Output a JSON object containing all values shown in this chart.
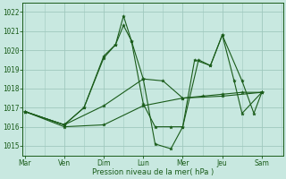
{
  "bg_color": "#c8e8e0",
  "grid_color": "#a0c8be",
  "line_color": "#1a5c1a",
  "xlabel": "Pression niveau de la mer( hPa )",
  "day_labels": [
    "Mar",
    "Ven",
    "Dim",
    "Lun",
    "Mer",
    "Jeu",
    "Sam"
  ],
  "yticks": [
    1015,
    1016,
    1017,
    1018,
    1019,
    1020,
    1021,
    1022
  ],
  "ylim": [
    1014.5,
    1022.5
  ],
  "xlim": [
    -0.05,
    6.55
  ],
  "s1_x": [
    0,
    1.0,
    2.0,
    3.0,
    4.0,
    5.0,
    6.0
  ],
  "s1_y": [
    1016.8,
    1016.0,
    1016.1,
    1017.1,
    1017.5,
    1017.6,
    1017.8
  ],
  "s2_x": [
    0,
    1.0,
    2.0,
    3.0,
    3.5,
    4.0,
    4.5,
    5.0,
    5.5,
    6.0
  ],
  "s2_y": [
    1016.8,
    1016.1,
    1017.1,
    1018.5,
    1018.4,
    1017.5,
    1017.6,
    1017.7,
    1017.8,
    1017.8
  ],
  "s3_x": [
    0,
    1.0,
    1.5,
    2.0,
    2.3,
    2.5,
    2.7,
    3.0,
    3.3,
    3.7,
    4.0,
    4.3,
    4.7,
    5.0,
    5.3,
    5.5,
    6.0
  ],
  "s3_y": [
    1016.8,
    1016.1,
    1017.0,
    1019.6,
    1020.3,
    1021.8,
    1020.5,
    1017.2,
    1016.0,
    1016.0,
    1016.0,
    1019.5,
    1019.2,
    1020.8,
    1018.4,
    1016.7,
    1017.8
  ],
  "s4_x": [
    0,
    1.0,
    1.5,
    2.0,
    2.3,
    2.5,
    2.7,
    3.0,
    3.3,
    3.7,
    4.0,
    4.4,
    4.7,
    5.0,
    5.5,
    5.8,
    6.0
  ],
  "s4_y": [
    1016.8,
    1016.1,
    1017.0,
    1019.7,
    1020.3,
    1021.3,
    1020.5,
    1018.5,
    1015.1,
    1014.85,
    1016.0,
    1019.5,
    1019.2,
    1020.8,
    1018.4,
    1016.7,
    1017.8
  ]
}
